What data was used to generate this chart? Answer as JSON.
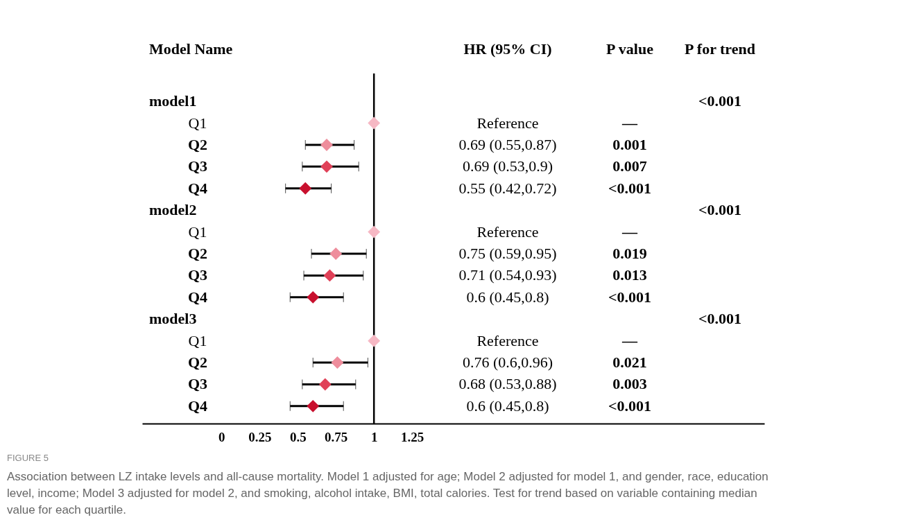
{
  "chart_data": {
    "type": "scatter",
    "orientation": "horizontal",
    "ylabel": "Model Name",
    "marker": "diamond",
    "grid": false,
    "legend": false,
    "categories": [
      "model1",
      "Q1",
      "Q2",
      "Q3",
      "Q4",
      "model2",
      "Q1",
      "Q2",
      "Q3",
      "Q4",
      "model3",
      "Q1",
      "Q2",
      "Q3",
      "Q4"
    ],
    "values": [
      null,
      1,
      0.69,
      0.69,
      0.55,
      null,
      1,
      0.75,
      0.71,
      0.6,
      null,
      1,
      0.76,
      0.68,
      0.6
    ],
    "errors": [
      null,
      null,
      [
        0.55,
        0.87
      ],
      [
        0.53,
        0.9
      ],
      [
        0.42,
        0.72
      ],
      null,
      null,
      [
        0.59,
        0.95
      ],
      [
        0.54,
        0.93
      ],
      [
        0.45,
        0.8
      ],
      null,
      null,
      [
        0.6,
        0.96
      ],
      [
        0.53,
        0.88
      ],
      [
        0.45,
        0.8
      ]
    ],
    "colors": [
      null,
      "#f6b8c4",
      "#ee8d9c",
      "#e04158",
      "#c8102e",
      null,
      "#f6b8c4",
      "#ee8d9c",
      "#e04158",
      "#c8102e",
      null,
      "#f6b8c4",
      "#ee8d9c",
      "#e04158",
      "#c8102e"
    ],
    "xlim": [
      -0.52,
      3.56
    ],
    "xticks": [
      0,
      0.25,
      0.5,
      0.75,
      1,
      1.25
    ],
    "ref_lines": [
      {
        "axis": "x",
        "value": 1,
        "color": "#000000"
      }
    ],
    "annotations": [
      "HR (95% CI)",
      "P value",
      "P for trend",
      "<0.001",
      "Reference",
      "—",
      "0.69 (0.55,0.87)",
      "0.001",
      "0.69 (0.53,0.9)",
      "0.007",
      "0.55 (0.42,0.72)",
      "<0.001",
      "<0.001",
      "Reference",
      "—",
      "0.75 (0.59,0.95)",
      "0.019",
      "0.71 (0.54,0.93)",
      "0.013",
      "0.6 (0.45,0.8)",
      "<0.001",
      "<0.001",
      "Reference",
      "—",
      "0.76 (0.6,0.96)",
      "0.021",
      "0.68 (0.53,0.88)",
      "0.003",
      "0.6 (0.45,0.8)",
      "<0.001",
      "FIGURE 5",
      "Association between LZ intake levels and all-cause mortality. Model 1 adjusted for age; Model 2 adjusted for model 1, and gender, race, education level, income; Model 3 adjusted for model 2, and smoking, alcohol intake, BMI, total calories. Test for trend based on variable containing median value for each quartile."
    ]
  }
}
